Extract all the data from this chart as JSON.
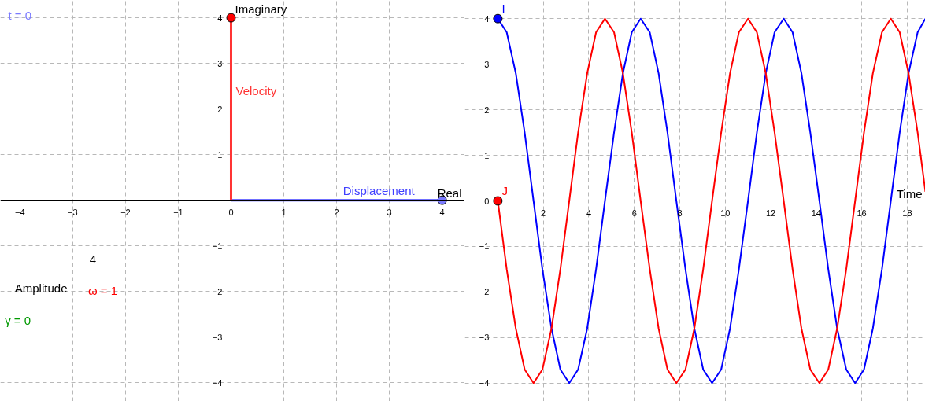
{
  "chart_data": [
    {
      "type": "line",
      "xlabel": "Real",
      "ylabel": "Imaginary",
      "xlim": [
        -4.37,
        4.43
      ],
      "ylim": [
        -4.41,
        4.38
      ],
      "xticks": [
        -4,
        -3,
        -2,
        -1,
        0,
        1,
        2,
        3,
        4
      ],
      "yticks": [
        -4,
        -3,
        -2,
        -1,
        1,
        2,
        3,
        4
      ],
      "grid": true,
      "series": [
        {
          "name": "Displacement",
          "color": "#4040ff",
          "x": [
            0,
            4
          ],
          "values": [
            0,
            0
          ]
        },
        {
          "name": "Velocity",
          "color": "#ff3333",
          "x": [
            0,
            0
          ],
          "values": [
            0,
            4
          ]
        },
        {
          "type": "scatter",
          "color": "#7b7bff",
          "x": [
            4
          ],
          "values": [
            0
          ]
        },
        {
          "type": "scatter",
          "color": "#ff0000",
          "x": [
            0
          ],
          "values": [
            4
          ]
        }
      ],
      "annotations": [
        "t = 0",
        "4",
        "Amplitude",
        "ω = 1",
        "γ = 0"
      ]
    },
    {
      "type": "line",
      "xlabel": "Time",
      "xlim": [
        -1.45,
        18.8
      ],
      "ylim": [
        -4.4,
        4.4
      ],
      "xticks": [
        2,
        4,
        6,
        8,
        10,
        12,
        14,
        16,
        18
      ],
      "yticks": [
        -4,
        -3,
        -2,
        -1,
        0,
        1,
        2,
        3,
        4
      ],
      "grid": true,
      "series": [
        {
          "color": "#0000ff",
          "x": [
            0,
            0.39,
            0.79,
            1.18,
            1.57,
            1.96,
            2.36,
            2.75,
            3.14,
            3.53,
            3.93,
            4.32,
            4.71,
            5.11,
            5.5,
            5.89,
            6.28,
            6.68,
            7.07,
            7.46,
            7.85,
            8.25,
            8.64,
            9.03,
            9.42,
            9.82,
            10.21,
            10.6,
            11.0,
            11.39,
            11.78,
            12.17,
            12.57,
            12.96,
            13.35,
            13.74,
            14.14,
            14.53,
            14.92,
            15.32,
            15.71,
            16.1,
            16.49,
            16.89,
            17.28,
            17.67,
            18.06,
            18.46,
            18.8
          ],
          "values": [
            4,
            3.7,
            2.8,
            1.5,
            0,
            -1.5,
            -2.8,
            -3.7,
            -4,
            -3.7,
            -2.8,
            -1.5,
            0,
            1.5,
            2.8,
            3.7,
            4,
            3.7,
            2.8,
            1.5,
            0,
            -1.5,
            -2.8,
            -3.7,
            -4,
            -3.7,
            -2.8,
            -1.5,
            0,
            1.5,
            2.8,
            3.7,
            4,
            3.7,
            2.8,
            1.5,
            0,
            -1.5,
            -2.8,
            -3.7,
            -4,
            -3.7,
            -2.8,
            -1.5,
            0,
            1.5,
            2.8,
            3.7,
            4
          ]
        },
        {
          "color": "#ff0000",
          "x": [
            0,
            0.39,
            0.79,
            1.18,
            1.57,
            1.96,
            2.36,
            2.75,
            3.14,
            3.53,
            3.93,
            4.32,
            4.71,
            5.11,
            5.5,
            5.89,
            6.28,
            6.68,
            7.07,
            7.46,
            7.85,
            8.25,
            8.64,
            9.03,
            9.42,
            9.82,
            10.21,
            10.6,
            11.0,
            11.39,
            11.78,
            12.17,
            12.57,
            12.96,
            13.35,
            13.74,
            14.14,
            14.53,
            14.92,
            15.32,
            15.71,
            16.1,
            16.49,
            16.89,
            17.28,
            17.67,
            18.06,
            18.46,
            18.8
          ],
          "values": [
            0,
            -1.5,
            -2.8,
            -3.7,
            -4,
            -3.7,
            -2.8,
            -1.5,
            0,
            1.5,
            2.8,
            3.7,
            4,
            3.7,
            2.8,
            1.5,
            0,
            -1.5,
            -2.8,
            -3.7,
            -4,
            -3.7,
            -2.8,
            -1.5,
            0,
            1.5,
            2.8,
            3.7,
            4,
            3.7,
            2.8,
            1.5,
            0,
            -1.5,
            -2.8,
            -3.7,
            -4,
            -3.7,
            -2.8,
            -1.5,
            0,
            1.5,
            2.8,
            3.7,
            4,
            3.7,
            2.8,
            1.5,
            0.2
          ]
        },
        {
          "type": "scatter",
          "name": "I",
          "color": "#0000ff",
          "x": [
            0
          ],
          "values": [
            4
          ]
        },
        {
          "type": "scatter",
          "name": "J",
          "color": "#ff0000",
          "x": [
            0
          ],
          "values": [
            0
          ]
        }
      ]
    }
  ]
}
